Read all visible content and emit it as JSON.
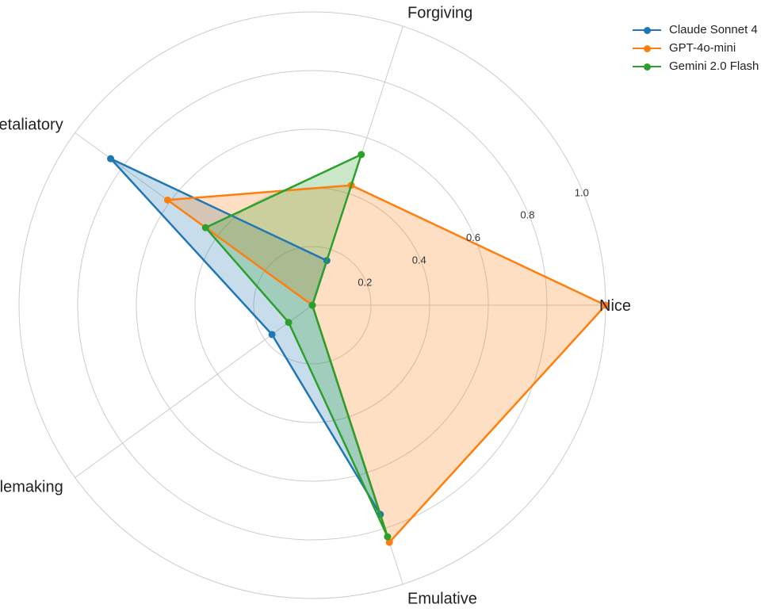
{
  "chart_data": {
    "type": "radar",
    "axes": [
      "Nice",
      "Forgiving",
      "Retaliatory",
      "Troublemaking",
      "Emulative"
    ],
    "rlim": [
      0,
      1.0
    ],
    "rticks": [
      0.2,
      0.4,
      0.6,
      0.8,
      1.0
    ],
    "rtick_labels": [
      "0.2",
      "0.4",
      "0.6",
      "0.8",
      "1.0"
    ],
    "grid": true,
    "legend_position": "top-right",
    "series": [
      {
        "name": "Claude Sonnet 4",
        "color": "#1f77b4",
        "values": [
          0.0,
          0.16,
          0.85,
          0.17,
          0.75
        ]
      },
      {
        "name": "GPT-4o-mini",
        "color": "#ff7f0e",
        "values": [
          1.0,
          0.43,
          0.61,
          0.0,
          0.85
        ]
      },
      {
        "name": "Gemini 2.0 Flash",
        "color": "#2ca02c",
        "values": [
          0.0,
          0.54,
          0.45,
          0.1,
          0.83
        ]
      }
    ]
  }
}
